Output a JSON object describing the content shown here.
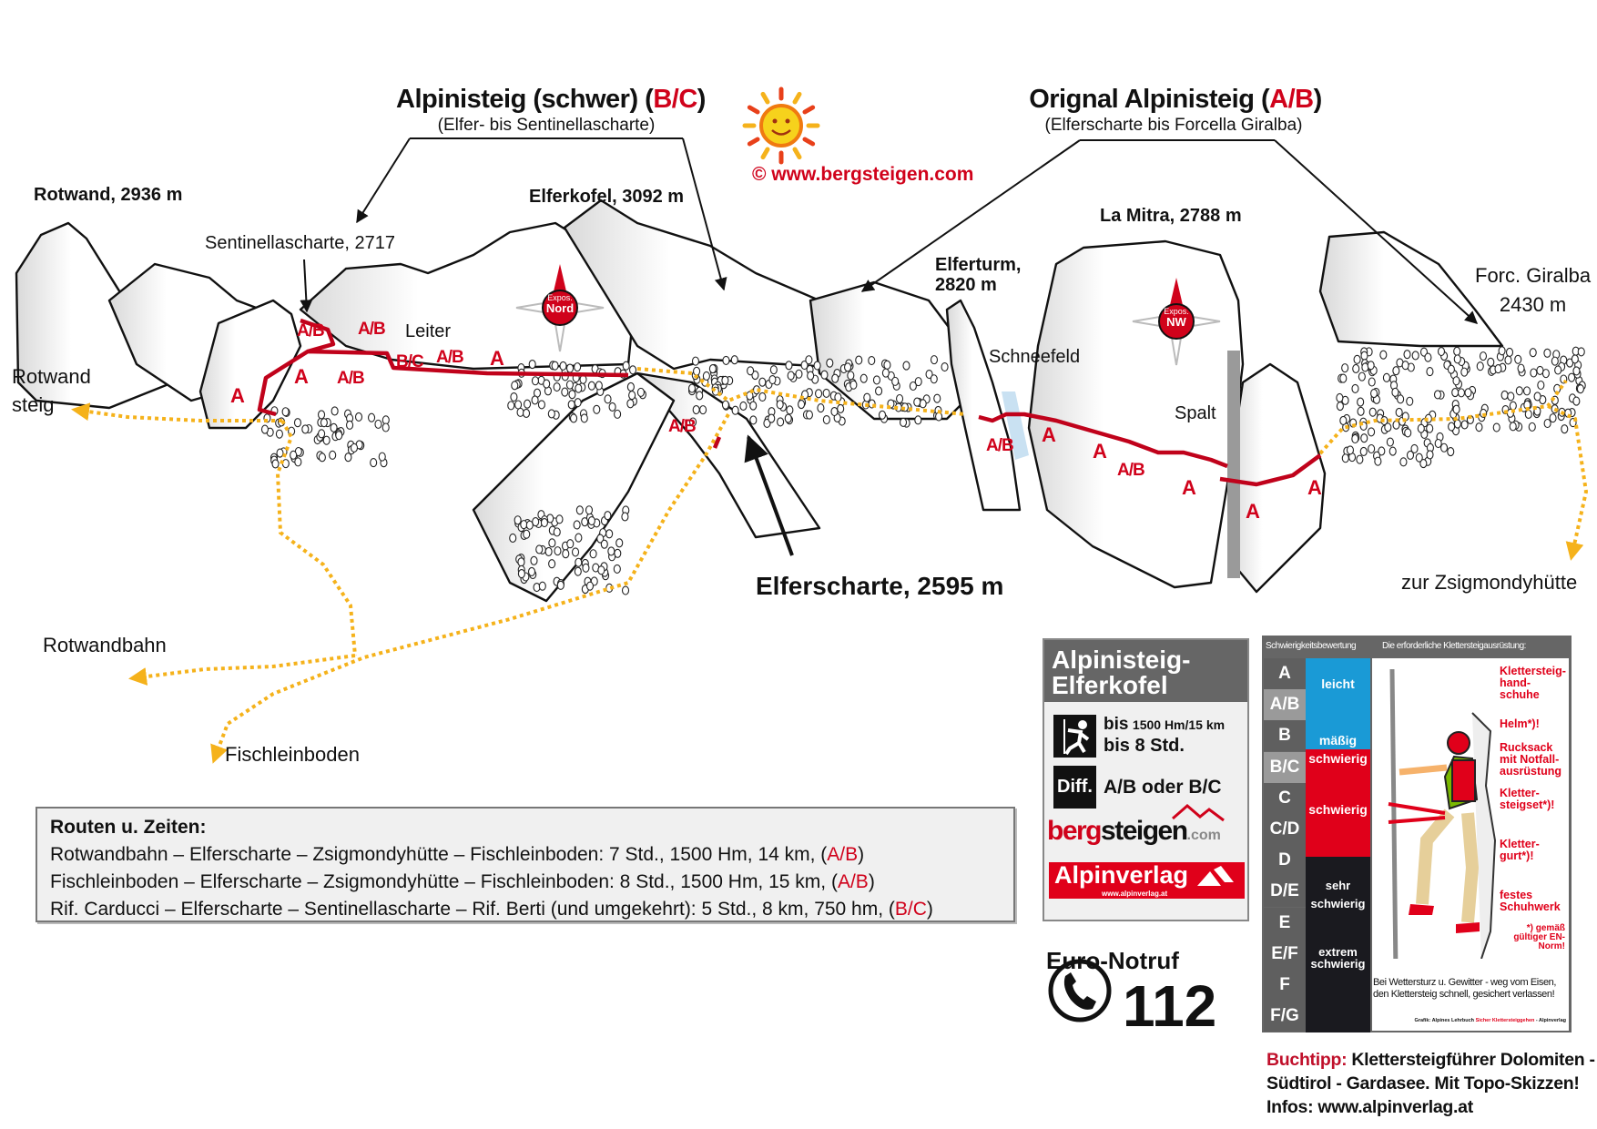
{
  "colors": {
    "route_red": "#c0021b",
    "path_yellow": "#f5b21b",
    "easy_blue": "#1a9ad6",
    "hard_red": "#e0001a",
    "extreme_black": "#1a1a1f"
  },
  "headings": {
    "left_title": "Alpinisteig (schwer) (",
    "left_grade": "B/C",
    "left_close": ")",
    "left_sub": "(Elfer- bis Sentinellascharte)",
    "right_title": "Orignal Alpinisteig (",
    "right_grade": "A/B",
    "right_close": ")",
    "right_sub": "(Elferscharte bis Forcella Giralba)",
    "copyright": "©  www.bergsteigen.com"
  },
  "places": {
    "rotwand": "Rotwand, 2936 m",
    "sentinella": "Sentinellascharte, 2717",
    "elferkofel": "Elferkofel, 3092 m",
    "la_mitra": "La Mitra, 2788 m",
    "elferturm_1": "Elferturm,",
    "elferturm_2": "2820 m",
    "giralba_1": "Forc. Giralba",
    "giralba_2": "2430 m",
    "leiter": "Leiter",
    "schneefeld": "Schneefeld",
    "spalt": "Spalt",
    "rotwandsteig_1": "Rotwand",
    "rotwandsteig_2": "steig",
    "elferscharte": "Elferscharte, 2595 m",
    "zsigmondy": "zur Zsigmondyhütte",
    "rotwandbahn": "Rotwandbahn",
    "fischleinboden": "Fischleinboden"
  },
  "compass": [
    {
      "label_1": "Expos.",
      "label_2": "Nord"
    },
    {
      "label_1": "Expos.",
      "label_2": "NW"
    }
  ],
  "route_grades": [
    "A/B",
    "A/B",
    "B/C",
    "A/B",
    "A",
    "A",
    "A/B",
    "A",
    "A/B",
    "A/B",
    "A",
    "A",
    "A/B",
    "A",
    "A",
    "A"
  ],
  "routes_box": {
    "heading": "Routen u. Zeiten:",
    "rows": [
      {
        "text": "Rotwandbahn – Elferscharte – Zsigmondyhütte – Fischleinboden: 7 Std., 1500 Hm, 14 km, (",
        "grade": "A/B",
        "close": ")"
      },
      {
        "text": "Fischleinboden – Elferscharte – Zsigmondyhütte – Fischleinboden: 8 Std., 1500 Hm, 15 km, (",
        "grade": "A/B",
        "close": ")"
      },
      {
        "text": "Rif. Carducci – Elferscharte – Sentinellascharte – Rif. Berti (und umgekehrt): 5 Std., 8 km, 750 hm, (",
        "grade": "B/C",
        "close": ")"
      }
    ]
  },
  "info_box": {
    "title_1": "Alpinisteig-",
    "title_2": "Elferkofel",
    "bis": "bis",
    "distance": "1500 Hm/15 km",
    "time": "bis 8 Std.",
    "diff_label": "Diff.",
    "difficulty": "A/B oder B/C",
    "logo_red": "berg",
    "logo_black": "steigen",
    "logo_com": ".com",
    "verlag": "Alpinverlag",
    "verlag_url": "www.alpinverlag.at"
  },
  "emergency": {
    "label": "Euro-Notruf",
    "number": "112"
  },
  "difficulty_panel": {
    "header_left": "Schwierigkeitsbewertung",
    "header_right": "Die erforderliche Klettersteigausrüstung:",
    "grades": [
      "A",
      "A/B",
      "B",
      "B/C",
      "C",
      "C/D",
      "D",
      "D/E",
      "E",
      "E/F",
      "F",
      "F/G"
    ],
    "categories": [
      "leicht",
      "mäßig",
      "schwierig",
      "schwierig",
      "sehr schwierig",
      "extrem schwierig"
    ],
    "gear": [
      "Klettersteig-hand-schuhe",
      "Helm*)!",
      "Rucksack mit Notfall-ausrüstung",
      "Kletter-steigset*)!",
      "Kletter-gurt*)!",
      "festes Schuhwerk",
      "*) gemäß gültiger EN-Norm!"
    ],
    "warning_1": "Bei Wettersturz u. Gewitter - weg vom Eisen,",
    "warning_2": "den Klettersteig schnell, gesichert verlassen!",
    "credit_1": "Grafik: Alpines Lehrbuch ",
    "credit_2": "Sicher Klettersteiggehen",
    "credit_3": " - Alpinverlag"
  },
  "book_tip": {
    "label": "Buchtipp:",
    "text_1": " Klettersteigführer Dolomiten -",
    "text_2": "Südtirol - Gardasee. Mit Topo-Skizzen!",
    "text_3": "Infos: www.alpinverlag.at"
  }
}
